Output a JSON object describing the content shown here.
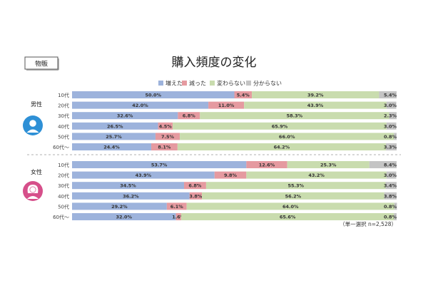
{
  "tag": "物販",
  "chart_data": {
    "type": "bar",
    "stacked": true,
    "orientation": "horizontal",
    "title": "購入頻度の変化",
    "legend_position": "top",
    "legend": [
      "増えた",
      "減った",
      "変わらない",
      "分からない"
    ],
    "colors": [
      "#9db3dc",
      "#e59aa0",
      "#c9dcae",
      "#c4c4c4"
    ],
    "note": "（単一選択 n=2,528）",
    "groups": [
      {
        "name": "男性",
        "icon": "male-avatar-icon",
        "categories": [
          "10代",
          "20代",
          "30代",
          "40代",
          "50代",
          "60代〜"
        ],
        "series": [
          {
            "name": "増えた",
            "values": [
              50.0,
              42.0,
              32.6,
              26.5,
              25.7,
              24.4
            ]
          },
          {
            "name": "減った",
            "values": [
              5.4,
              11.0,
              6.8,
              4.5,
              7.5,
              8.1
            ]
          },
          {
            "name": "変わらない",
            "values": [
              39.2,
              43.9,
              58.3,
              65.9,
              66.0,
              64.2
            ]
          },
          {
            "name": "分からない",
            "values": [
              5.4,
              3.0,
              2.3,
              3.0,
              0.8,
              3.3
            ]
          }
        ]
      },
      {
        "name": "女性",
        "icon": "female-avatar-icon",
        "categories": [
          "10代",
          "20代",
          "30代",
          "40代",
          "50代",
          "60代〜"
        ],
        "series": [
          {
            "name": "増えた",
            "values": [
              53.7,
              43.9,
              34.5,
              36.2,
              29.2,
              32.0
            ]
          },
          {
            "name": "減った",
            "values": [
              12.6,
              9.8,
              6.8,
              3.8,
              6.1,
              1.6
            ]
          },
          {
            "name": "変わらない",
            "values": [
              25.3,
              43.2,
              55.3,
              56.2,
              64.0,
              65.6
            ]
          },
          {
            "name": "分からない",
            "values": [
              8.4,
              3.0,
              3.4,
              3.8,
              0.8,
              0.8
            ]
          }
        ]
      }
    ]
  }
}
